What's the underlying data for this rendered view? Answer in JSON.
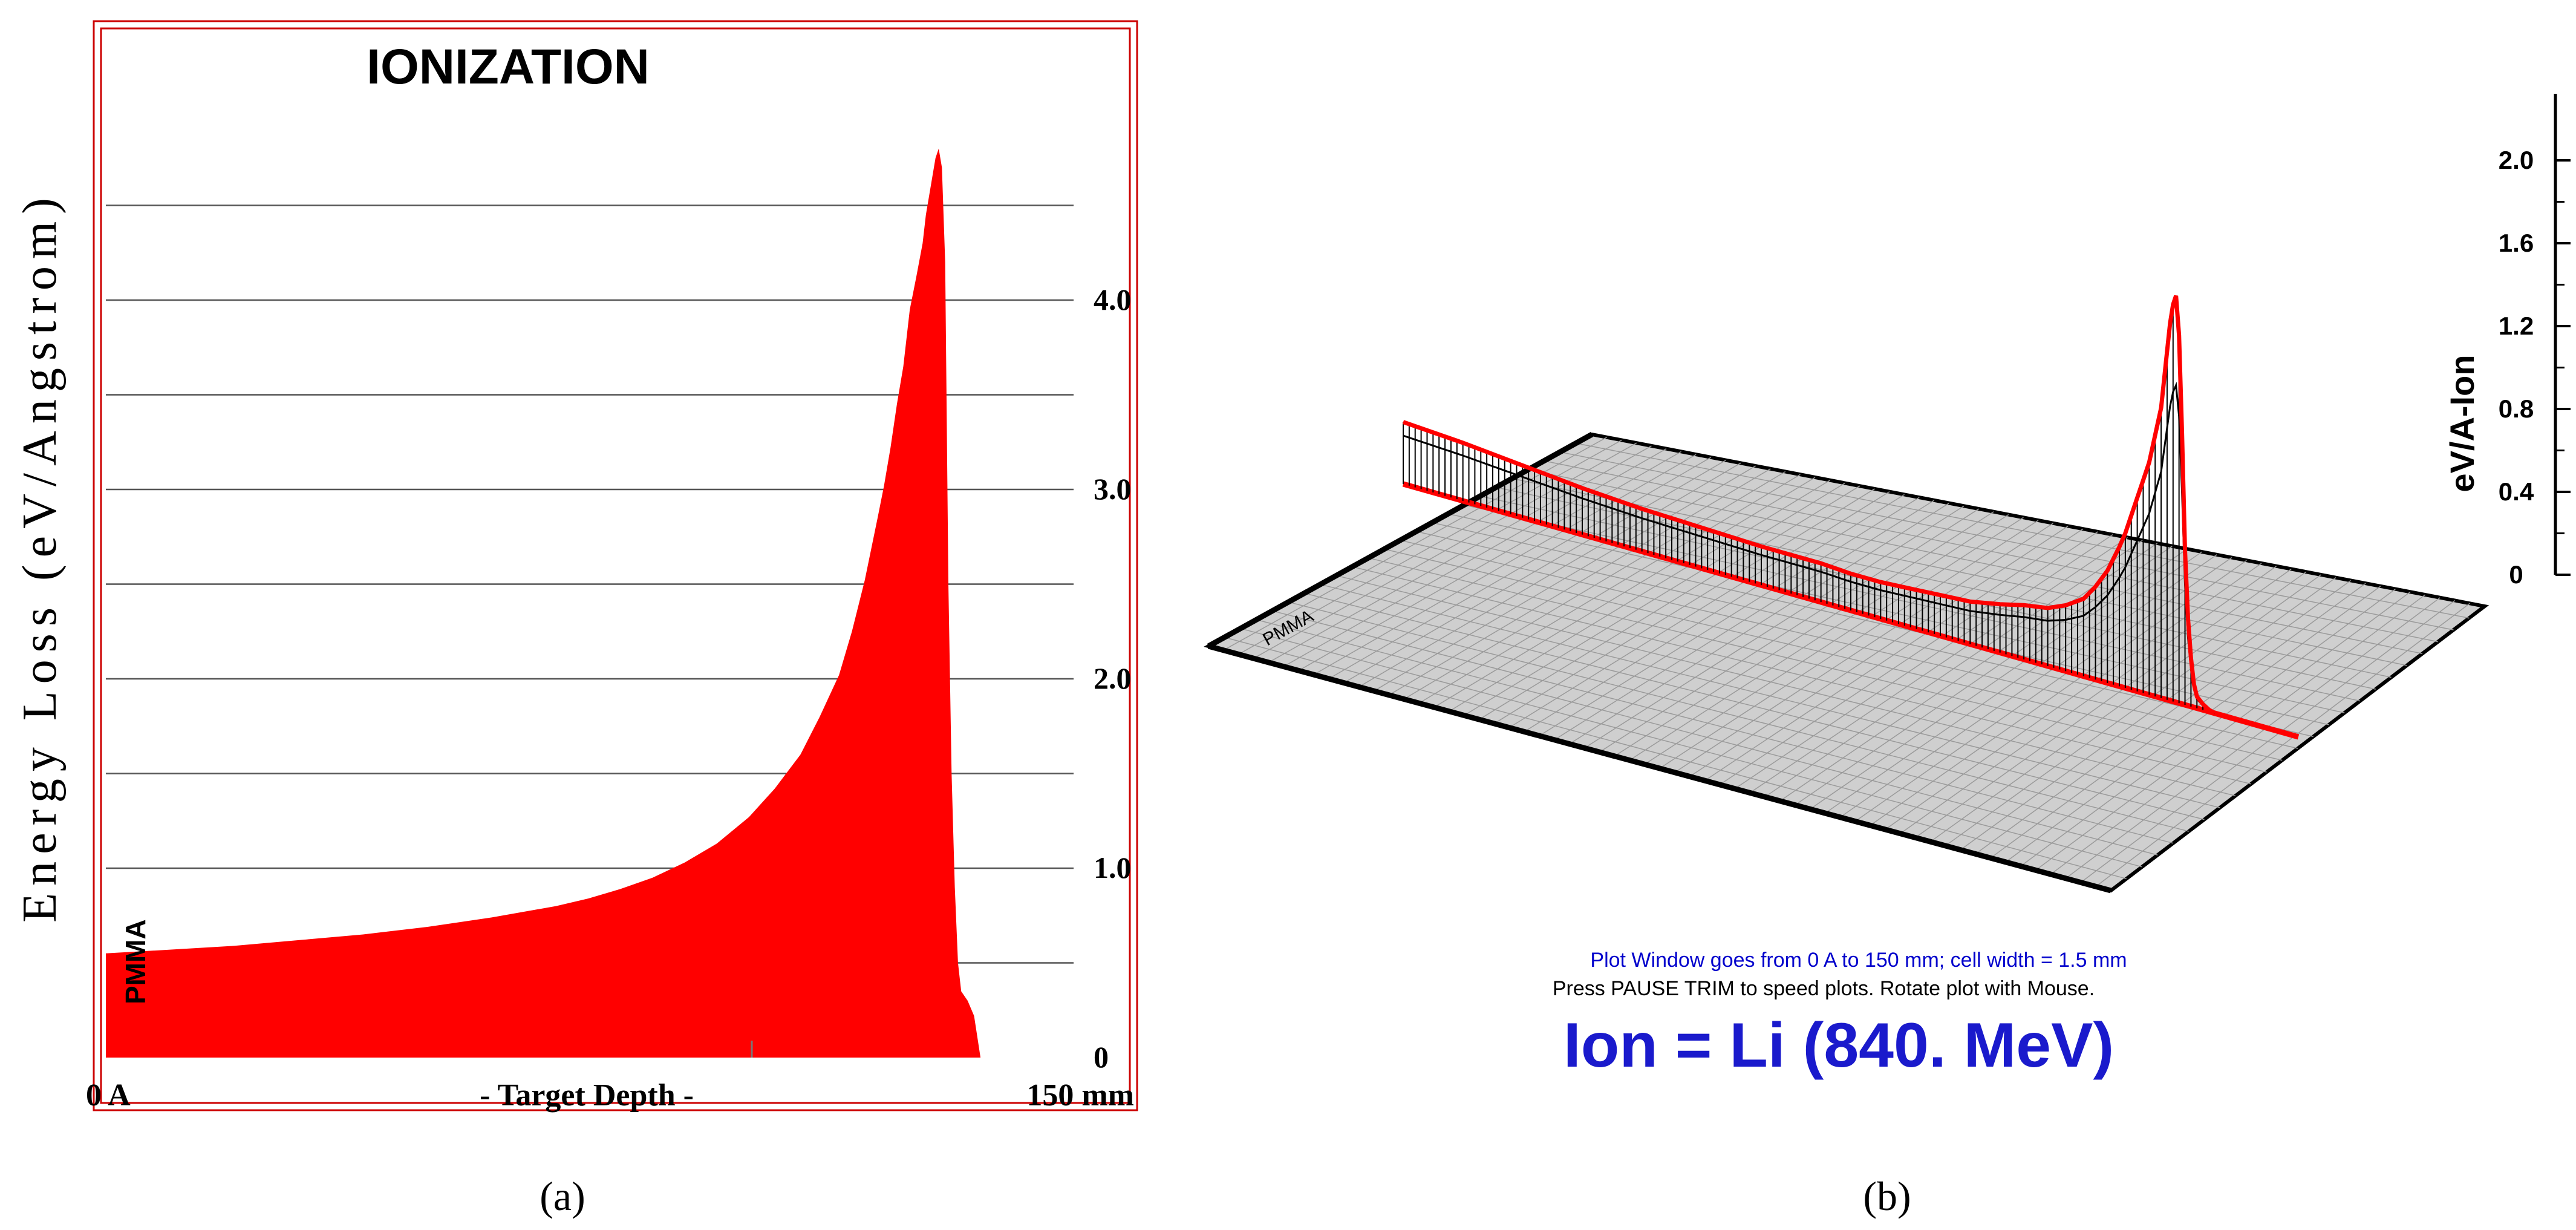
{
  "chart_data": [
    {
      "type": "area",
      "panel_label": "(a)",
      "title": "IONIZATION",
      "ylabel": "Energy Loss (eV/Angstrom)",
      "xlabel": "- Target Depth -",
      "x_start_label": "0 A",
      "x_end_label": "150 mm",
      "xlim": [
        0,
        150
      ],
      "ylim": [
        0,
        4.5
      ],
      "yticks": [
        "0",
        "1.0",
        "2.0",
        "3.0",
        "4.0"
      ],
      "grid": true,
      "annotation": "PMMA",
      "colors": {
        "fill": "#ff0000",
        "frame": "#cc0000",
        "grid": "#555555"
      },
      "series": [
        {
          "x": [
            0,
            10,
            20,
            30,
            40,
            50,
            60,
            70,
            75,
            80,
            85,
            90,
            95,
            100,
            104,
            108,
            111,
            114,
            116,
            118,
            120,
            121,
            122,
            123,
            124,
            125,
            126,
            127,
            127.5,
            128,
            128.5,
            129,
            129.5,
            130,
            130.5,
            131,
            131.5,
            132,
            132.5,
            133,
            134,
            135,
            136
          ],
          "y": [
            0.55,
            0.57,
            0.59,
            0.62,
            0.65,
            0.69,
            0.74,
            0.8,
            0.84,
            0.89,
            0.95,
            1.03,
            1.13,
            1.27,
            1.42,
            1.6,
            1.8,
            2.02,
            2.25,
            2.52,
            2.85,
            3.02,
            3.22,
            3.45,
            3.65,
            3.95,
            4.12,
            4.3,
            4.45,
            4.55,
            4.65,
            4.75,
            4.8,
            4.7,
            4.2,
            2.5,
            1.5,
            0.9,
            0.5,
            0.35,
            0.3,
            0.22,
            0
          ]
        }
      ]
    },
    {
      "type": "area",
      "panel_label": "(b)",
      "ylabel": "eV/A-Ion",
      "yticks": [
        "0",
        "0.4",
        "0.8",
        "1.2",
        "1.6",
        "2.0"
      ],
      "ylim": [
        0,
        2.2
      ],
      "annotation": "PMMA",
      "info_line_1": "Plot Window goes from 0 A to 150 mm;  cell width = 1.5 mm",
      "info_line_2": "Press PAUSE TRIM to speed plots.    Rotate plot with Mouse.",
      "ion_label": "Ion = Li (840. MeV)",
      "colors": {
        "trace": "#ff0000",
        "plane": "#c8c8c8",
        "axis_text": "#000000",
        "info_blue": "#0000cc",
        "ion_blue": "#1a1acc"
      },
      "series": [
        {
          "x": [
            0,
            10,
            20,
            30,
            40,
            50,
            60,
            70,
            75,
            80,
            85,
            90,
            95,
            100,
            104,
            108,
            111,
            114,
            116,
            118,
            120,
            121,
            122,
            123,
            124,
            125,
            126,
            127,
            127.5,
            128,
            128.5,
            129,
            129.5,
            130,
            130.5,
            131,
            131.5,
            132,
            132.5,
            133,
            134,
            135,
            136
          ],
          "y": [
            0.32,
            0.3,
            0.27,
            0.24,
            0.22,
            0.21,
            0.2,
            0.2,
            0.19,
            0.19,
            0.2,
            0.21,
            0.22,
            0.25,
            0.28,
            0.3,
            0.34,
            0.4,
            0.48,
            0.58,
            0.72,
            0.8,
            0.9,
            1.0,
            1.1,
            1.2,
            1.35,
            1.5,
            1.65,
            1.8,
            1.95,
            2.05,
            2.1,
            1.9,
            1.4,
            0.8,
            0.45,
            0.25,
            0.12,
            0.06,
            0.03,
            0.01,
            0
          ]
        }
      ]
    }
  ]
}
